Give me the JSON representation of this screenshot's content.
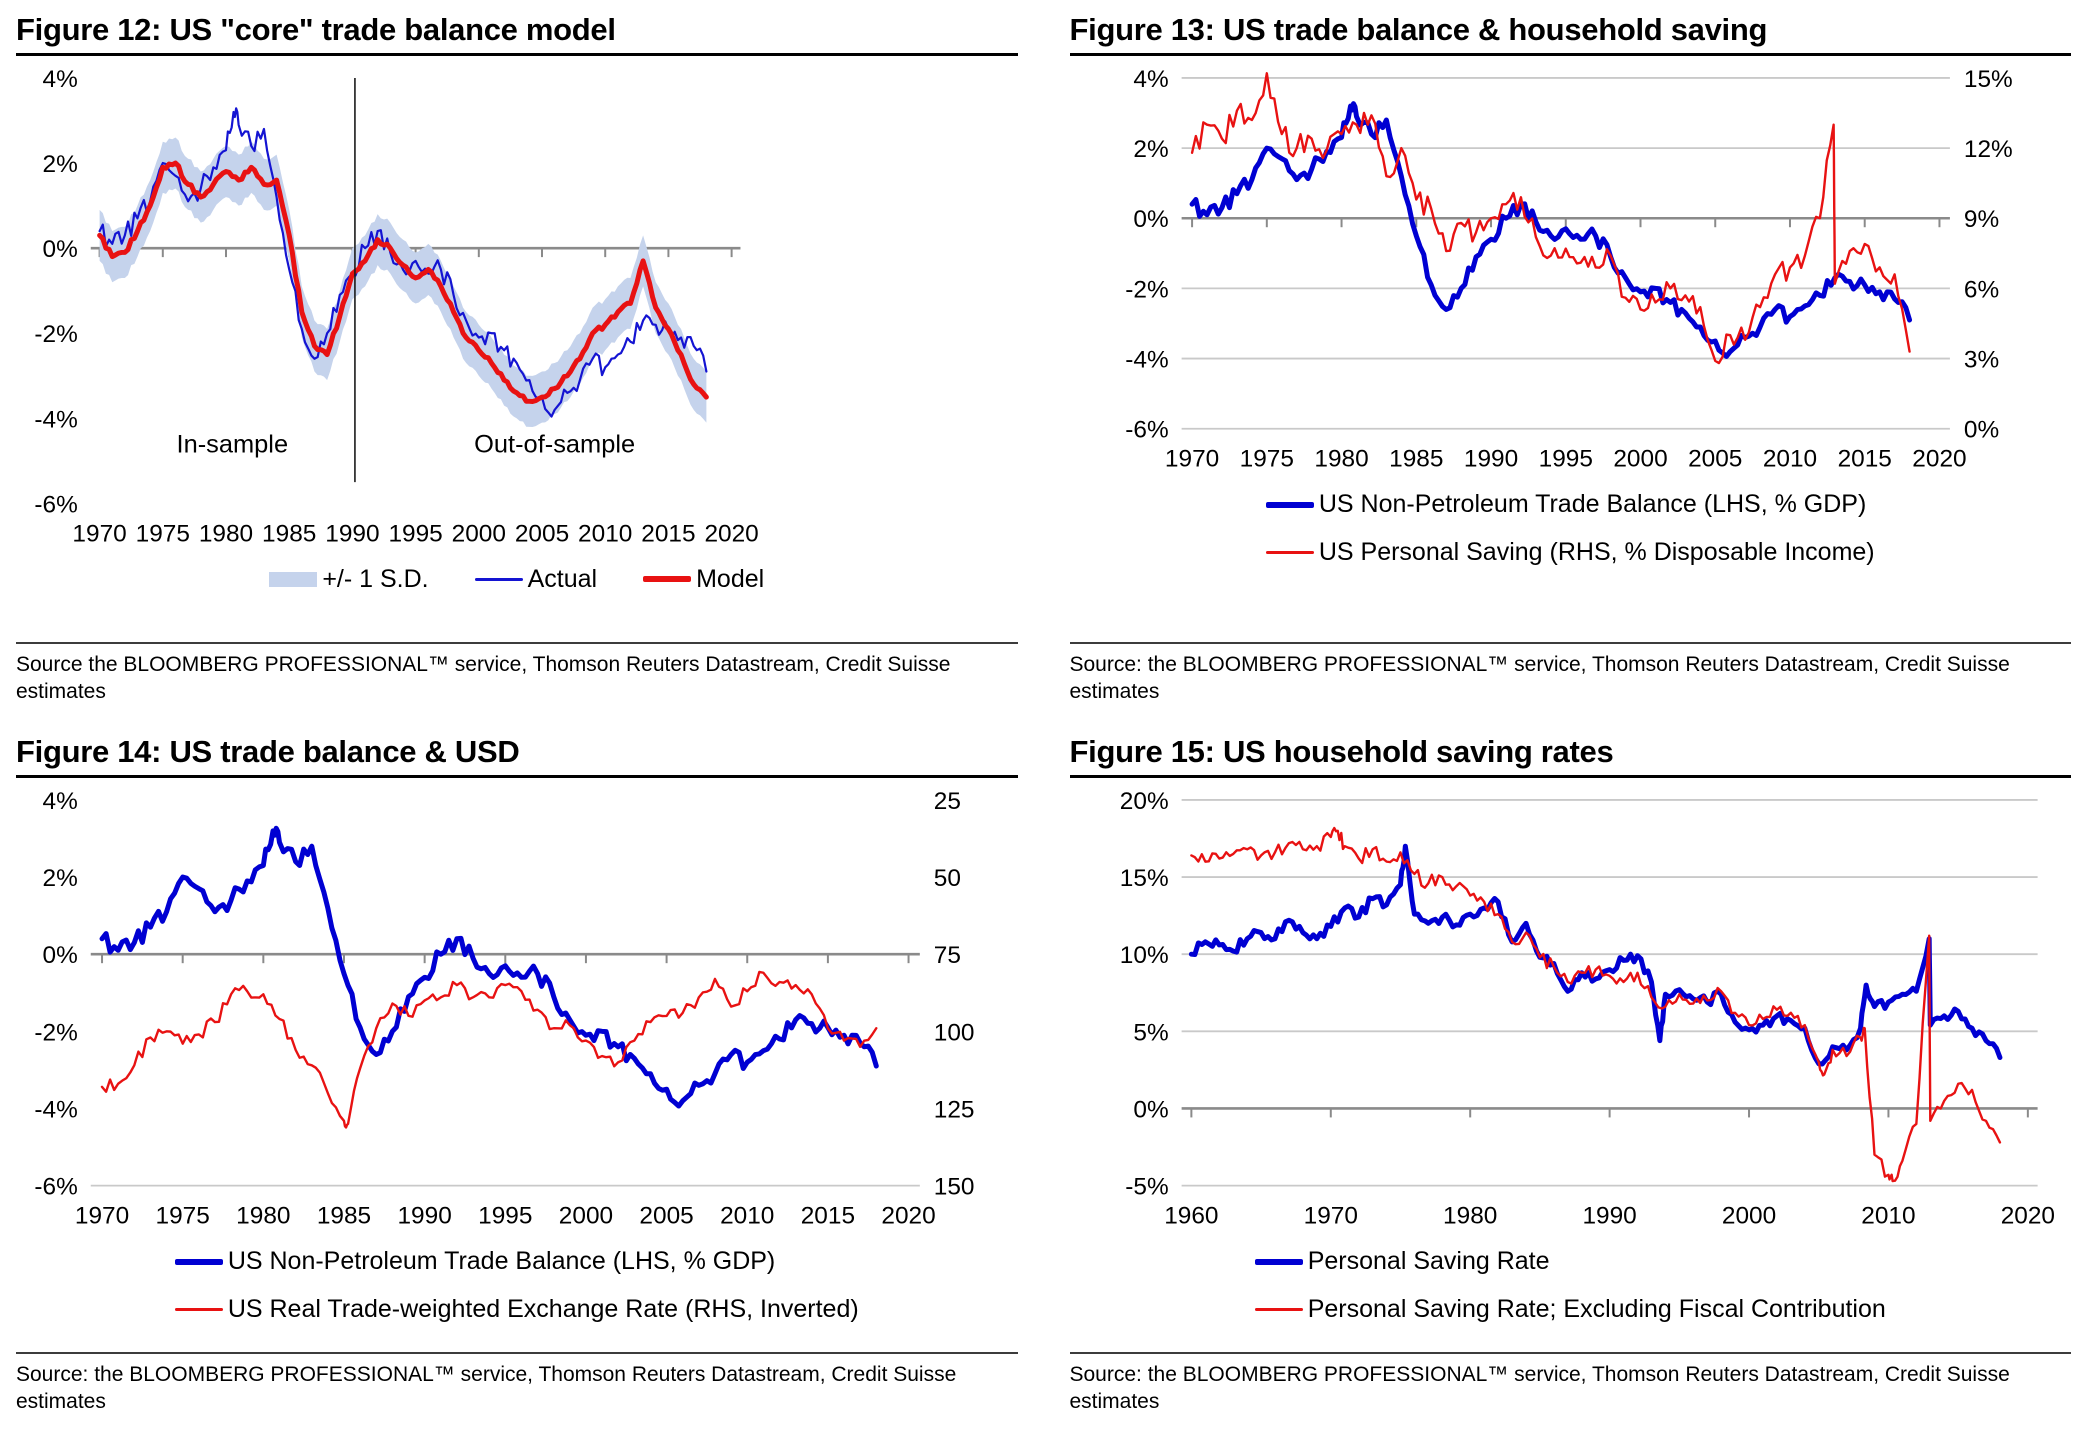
{
  "panels": [
    {
      "title": "Figure 12: US \"core\" trade balance model",
      "source": "Source the BLOOMBERG PROFESSIONAL™ service, Thomson Reuters Datastream, Credit Suisse estimates",
      "legend": {
        "rows": [
          [
            {
              "swatch": "band",
              "color": "#c5d3ec",
              "label": "+/- 1 S.D."
            },
            {
              "swatch": "line",
              "color": "#1414d2",
              "thick": 3,
              "label": "Actual"
            },
            {
              "swatch": "line",
              "color": "#e81212",
              "thick": 6,
              "label": "Model"
            }
          ]
        ]
      }
    },
    {
      "title": "Figure 13: US trade balance & household saving",
      "source": "Source: the BLOOMBERG PROFESSIONAL™ service, Thomson Reuters Datastream, Credit Suisse estimates",
      "legend": {
        "rows": [
          [
            {
              "swatch": "line",
              "color": "#0000d2",
              "thick": 6,
              "label": "US Non-Petroleum Trade Balance (LHS, % GDP)"
            }
          ],
          [
            {
              "swatch": "line",
              "color": "#e81212",
              "thick": 3,
              "label": "US Personal Saving (RHS, % Disposable Income)"
            }
          ]
        ]
      }
    },
    {
      "title": "Figure 14: US trade balance & USD",
      "source": "Source: the BLOOMBERG PROFESSIONAL™ service, Thomson Reuters Datastream, Credit Suisse estimates",
      "legend": {
        "rows": [
          [
            {
              "swatch": "line",
              "color": "#0000d2",
              "thick": 6,
              "label": "US Non-Petroleum Trade Balance (LHS, % GDP)"
            }
          ],
          [
            {
              "swatch": "line",
              "color": "#e81212",
              "thick": 3,
              "label": "US Real Trade-weighted Exchange Rate (RHS, Inverted)"
            }
          ]
        ]
      }
    },
    {
      "title": "Figure 15: US household saving rates",
      "source": "Source: the BLOOMBERG PROFESSIONAL™ service, Thomson Reuters Datastream, Credit Suisse estimates",
      "legend": {
        "rows": [
          [
            {
              "swatch": "line",
              "color": "#0000d2",
              "thick": 6,
              "label": "Personal Saving Rate"
            }
          ],
          [
            {
              "swatch": "line",
              "color": "#e81212",
              "thick": 3,
              "label": "Personal Saving Rate; Excluding Fiscal Contribution"
            }
          ]
        ]
      }
    }
  ],
  "chart_data": [
    {
      "type": "line",
      "title": "Figure 12: US \"core\" trade balance model",
      "x_range": [
        1969.3,
        2020.7
      ],
      "x_ticks": [
        1970,
        1975,
        1980,
        1985,
        1990,
        1995,
        2000,
        2005,
        2010,
        2015,
        2020
      ],
      "left_axis": {
        "range": [
          4,
          -6
        ],
        "ticks": [
          {
            "label": "4%",
            "v": 4
          },
          {
            "label": "2%",
            "v": 2
          },
          {
            "label": "0%",
            "v": 0
          },
          {
            "label": "-2%",
            "v": -2
          },
          {
            "label": "-4%",
            "v": -4
          },
          {
            "label": "-6%",
            "v": -6
          }
        ]
      },
      "right_axis": null,
      "gridlines": [],
      "zero_line": true,
      "divider": {
        "x": 1990.2,
        "from": 4,
        "to": -5.5
      },
      "annotations": [
        {
          "text": "In-sample",
          "x": 1980.5,
          "y": -4.8
        },
        {
          "text": "Out-of-sample",
          "x": 2006,
          "y": -4.8
        }
      ],
      "series": [
        {
          "name": "+/- 1 S.D.",
          "kind": "band",
          "ref": "Model",
          "halfwidth": 0.6,
          "color": "#c5d3ec"
        },
        {
          "name": "Actual",
          "kind": "line",
          "axis": "left",
          "color": "#1414d2",
          "width": 2.2,
          "noise": 0.24,
          "x_start": 1970,
          "x_step": 1,
          "spikes": [
            [
              1980.6,
              3.2
            ]
          ],
          "y": [
            0.4,
            0.1,
            0.3,
            0.7,
            1.1,
            2.0,
            1.7,
            1.1,
            1.4,
            1.9,
            2.3,
            2.9,
            2.4,
            2.8,
            1.2,
            -0.5,
            -1.9,
            -2.6,
            -2.0,
            -1.1,
            -0.6,
            0.0,
            0.4,
            -0.1,
            -0.5,
            -0.3,
            -0.6,
            -0.5,
            -1.1,
            -1.7,
            -2.1,
            -2.0,
            -2.4,
            -2.7,
            -3.1,
            -3.5,
            -3.8,
            -3.4,
            -3.1,
            -2.6,
            -2.8,
            -2.5,
            -2.2,
            -1.7,
            -1.8,
            -1.9,
            -2.1,
            -2.3,
            -2.9
          ]
        },
        {
          "name": "Model",
          "kind": "line",
          "axis": "left",
          "color": "#e81212",
          "width": 5,
          "noise": 0.06,
          "x_start": 1970,
          "x_step": 1,
          "y": [
            0.3,
            -0.2,
            -0.1,
            0.4,
            1.0,
            1.9,
            2.0,
            1.5,
            1.2,
            1.5,
            1.8,
            1.6,
            1.9,
            1.5,
            1.6,
            0.3,
            -1.5,
            -2.3,
            -2.5,
            -1.6,
            -0.6,
            -0.3,
            0.2,
            0.0,
            -0.4,
            -0.7,
            -0.5,
            -0.9,
            -1.5,
            -2.1,
            -2.4,
            -2.7,
            -3.1,
            -3.4,
            -3.6,
            -3.5,
            -3.3,
            -3.0,
            -2.6,
            -2.0,
            -1.8,
            -1.5,
            -1.3,
            -0.3,
            -1.4,
            -1.9,
            -2.5,
            -3.2,
            -3.5
          ]
        }
      ]
    },
    {
      "type": "line",
      "title": "Figure 13: US trade balance & household saving",
      "x_range": [
        1969.3,
        2020.7
      ],
      "x_ticks": [
        1970,
        1975,
        1980,
        1985,
        1990,
        1995,
        2000,
        2005,
        2010,
        2015,
        2020
      ],
      "left_axis": {
        "range": [
          4,
          -6
        ],
        "ticks": [
          {
            "label": "4%",
            "v": 4
          },
          {
            "label": "2%",
            "v": 2
          },
          {
            "label": "0%",
            "v": 0
          },
          {
            "label": "-2%",
            "v": -2
          },
          {
            "label": "-4%",
            "v": -4
          },
          {
            "label": "-6%",
            "v": -6
          }
        ]
      },
      "right_axis": {
        "range": [
          15,
          0
        ],
        "ticks": [
          {
            "label": "15%",
            "v": 15
          },
          {
            "label": "12%",
            "v": 12
          },
          {
            "label": "9%",
            "v": 9
          },
          {
            "label": "6%",
            "v": 6
          },
          {
            "label": "3%",
            "v": 3
          },
          {
            "label": "0%",
            "v": 0
          }
        ]
      },
      "gridlines": [
        4,
        2,
        -2,
        -4,
        -6
      ],
      "zero_line": true,
      "series": [
        {
          "name": "US Non-Petroleum Trade Balance (LHS, % GDP)",
          "kind": "line",
          "axis": "left",
          "color": "#0000d2",
          "width": 5,
          "noise": 0.22,
          "x_start": 1970,
          "x_step": 1,
          "spikes": [
            [
              1980.6,
              3.2
            ]
          ],
          "y": [
            0.4,
            0.1,
            0.3,
            0.7,
            1.1,
            2.0,
            1.7,
            1.1,
            1.4,
            1.9,
            2.3,
            2.9,
            2.4,
            2.8,
            1.2,
            -0.5,
            -1.9,
            -2.6,
            -2.0,
            -1.1,
            -0.6,
            0.0,
            0.4,
            -0.1,
            -0.5,
            -0.3,
            -0.6,
            -0.5,
            -1.1,
            -1.7,
            -2.1,
            -2.0,
            -2.4,
            -2.7,
            -3.1,
            -3.5,
            -3.8,
            -3.4,
            -3.1,
            -2.6,
            -2.8,
            -2.5,
            -2.2,
            -1.7,
            -1.8,
            -1.9,
            -2.1,
            -2.3,
            -2.9
          ]
        },
        {
          "name": "US Personal Saving (RHS, % Disposable Income)",
          "kind": "line",
          "axis": "right",
          "color": "#e81212",
          "width": 2.4,
          "noise": 0.5,
          "x_start": 1970,
          "x_step": 1,
          "spikes": [
            [
              2012.92,
              13.0
            ]
          ],
          "y": [
            11.8,
            13.0,
            12.4,
            13.6,
            13.2,
            15.2,
            12.6,
            12.0,
            12.4,
            11.9,
            12.6,
            13.0,
            13.4,
            10.8,
            12.0,
            9.8,
            9.4,
            7.6,
            8.8,
            8.4,
            9.0,
            9.6,
            9.9,
            8.2,
            7.4,
            7.7,
            7.1,
            6.9,
            7.4,
            5.6,
            5.1,
            5.4,
            6.0,
            5.7,
            5.2,
            2.9,
            4.0,
            3.8,
            5.2,
            6.6,
            6.9,
            7.4,
            9.0,
            6.2,
            7.6,
            7.9,
            6.9,
            6.6,
            3.3
          ]
        }
      ]
    },
    {
      "type": "line",
      "title": "Figure 14: US trade balance & USD",
      "x_range": [
        1969.3,
        2020.7
      ],
      "x_ticks": [
        1970,
        1975,
        1980,
        1985,
        1990,
        1995,
        2000,
        2005,
        2010,
        2015,
        2020
      ],
      "left_axis": {
        "range": [
          4,
          -6
        ],
        "ticks": [
          {
            "label": "4%",
            "v": 4
          },
          {
            "label": "2%",
            "v": 2
          },
          {
            "label": "0%",
            "v": 0
          },
          {
            "label": "-2%",
            "v": -2
          },
          {
            "label": "-4%",
            "v": -4
          },
          {
            "label": "-6%",
            "v": -6
          }
        ]
      },
      "right_axis": {
        "range": [
          25,
          150
        ],
        "ticks": [
          {
            "label": "25",
            "v": 25
          },
          {
            "label": "50",
            "v": 50
          },
          {
            "label": "75",
            "v": 75
          },
          {
            "label": "100",
            "v": 100
          },
          {
            "label": "125",
            "v": 125
          },
          {
            "label": "150",
            "v": 150
          }
        ]
      },
      "gridlines": [
        -6
      ],
      "zero_line": true,
      "series": [
        {
          "name": "US Non-Petroleum Trade Balance (LHS, % GDP)",
          "kind": "line",
          "axis": "left",
          "color": "#0000d2",
          "width": 5,
          "noise": 0.22,
          "x_start": 1970,
          "x_step": 1,
          "spikes": [
            [
              1980.6,
              3.2
            ]
          ],
          "y": [
            0.4,
            0.1,
            0.3,
            0.7,
            1.1,
            2.0,
            1.7,
            1.1,
            1.4,
            1.9,
            2.3,
            2.9,
            2.4,
            2.8,
            1.2,
            -0.5,
            -1.9,
            -2.6,
            -2.0,
            -1.1,
            -0.6,
            0.0,
            0.4,
            -0.1,
            -0.5,
            -0.3,
            -0.6,
            -0.5,
            -1.1,
            -1.7,
            -2.1,
            -2.0,
            -2.4,
            -2.7,
            -3.1,
            -3.5,
            -3.8,
            -3.4,
            -3.1,
            -2.6,
            -2.8,
            -2.5,
            -2.2,
            -1.7,
            -1.8,
            -1.9,
            -2.1,
            -2.3,
            -2.9
          ]
        },
        {
          "name": "US Real Trade-weighted Exchange Rate (RHS, Inverted)",
          "kind": "line",
          "axis": "right",
          "color": "#e81212",
          "width": 2.4,
          "noise": 2.2,
          "x_start": 1970,
          "x_step": 1,
          "spikes": [
            [
              1985.25,
              130
            ]
          ],
          "y": [
            118,
            117,
            111,
            102,
            100,
            104,
            101,
            97,
            88,
            87,
            88,
            96,
            106,
            111,
            120,
            129,
            112,
            99,
            91,
            95,
            90,
            89,
            85,
            89,
            89,
            85,
            87,
            93,
            99,
            98,
            103,
            108,
            110,
            103,
            97,
            95,
            94,
            89,
            83,
            92,
            87,
            81,
            84,
            85,
            88,
            99,
            103,
            105,
            99
          ]
        }
      ]
    },
    {
      "type": "line",
      "title": "Figure 15: US household saving rates",
      "x_range": [
        1959.3,
        2020.7
      ],
      "x_ticks": [
        1960,
        1970,
        1980,
        1990,
        2000,
        2010,
        2020
      ],
      "left_axis": {
        "range": [
          20,
          -5
        ],
        "ticks": [
          {
            "label": "20%",
            "v": 20
          },
          {
            "label": "15%",
            "v": 15
          },
          {
            "label": "10%",
            "v": 10
          },
          {
            "label": "5%",
            "v": 5
          },
          {
            "label": "0%",
            "v": 0
          },
          {
            "label": "-5%",
            "v": -5
          }
        ]
      },
      "right_axis": null,
      "gridlines": [
        20,
        15,
        10,
        5,
        -5
      ],
      "zero_line": true,
      "series": [
        {
          "name": "Personal Saving Rate",
          "kind": "line",
          "axis": "left",
          "color": "#0000d2",
          "width": 5,
          "noise": 0.35,
          "x_start": 1960,
          "x_step": 1,
          "spikes": [
            [
              1975.35,
              17.0
            ],
            [
              1993.6,
              4.4
            ],
            [
              2008.4,
              8.0
            ],
            [
              2012.92,
              11.0
            ]
          ],
          "y": [
            10.0,
            10.8,
            10.6,
            10.2,
            11.0,
            11.4,
            11.0,
            12.2,
            11.4,
            11.0,
            11.8,
            13.0,
            12.4,
            13.6,
            13.2,
            14.5,
            12.6,
            12.0,
            12.4,
            11.9,
            12.6,
            13.0,
            13.4,
            10.8,
            12.0,
            9.8,
            9.4,
            7.6,
            8.8,
            8.4,
            9.0,
            9.6,
            9.9,
            8.2,
            7.4,
            7.7,
            7.1,
            6.9,
            7.4,
            5.6,
            5.1,
            5.4,
            6.0,
            5.7,
            5.2,
            2.9,
            4.0,
            3.8,
            5.2,
            6.6,
            6.9,
            7.4,
            7.6,
            5.4,
            6.0,
            6.3,
            5.2,
            4.4,
            3.3
          ]
        },
        {
          "name": "Personal Saving Rate; Excluding Fiscal Contribution",
          "kind": "line",
          "axis": "left",
          "color": "#e81212",
          "width": 2.4,
          "noise": 0.45,
          "x_start": 1960,
          "x_step": 1,
          "spikes": [
            [
              1970.5,
              18.0
            ],
            [
              2005.4,
              2.2
            ],
            [
              2008.3,
              5.2
            ],
            [
              2010.3,
              -4.7
            ],
            [
              2012.92,
              11.2
            ]
          ],
          "y": [
            16.4,
            16.0,
            16.2,
            16.5,
            16.8,
            16.4,
            16.6,
            17.2,
            16.8,
            17.0,
            17.6,
            17.0,
            16.2,
            16.8,
            16.0,
            16.6,
            15.2,
            14.6,
            15.0,
            14.4,
            13.8,
            13.4,
            12.6,
            10.8,
            11.4,
            9.8,
            9.2,
            8.2,
            8.8,
            9.0,
            8.6,
            8.2,
            8.8,
            7.2,
            6.6,
            7.4,
            6.8,
            7.0,
            7.6,
            6.2,
            5.4,
            5.8,
            6.4,
            6.2,
            5.4,
            3.0,
            3.8,
            3.4,
            4.6,
            -3.0,
            -4.3,
            -3.4,
            -1.0,
            -0.8,
            0.5,
            1.6,
            1.2,
            -0.8,
            -2.2
          ]
        }
      ]
    }
  ]
}
